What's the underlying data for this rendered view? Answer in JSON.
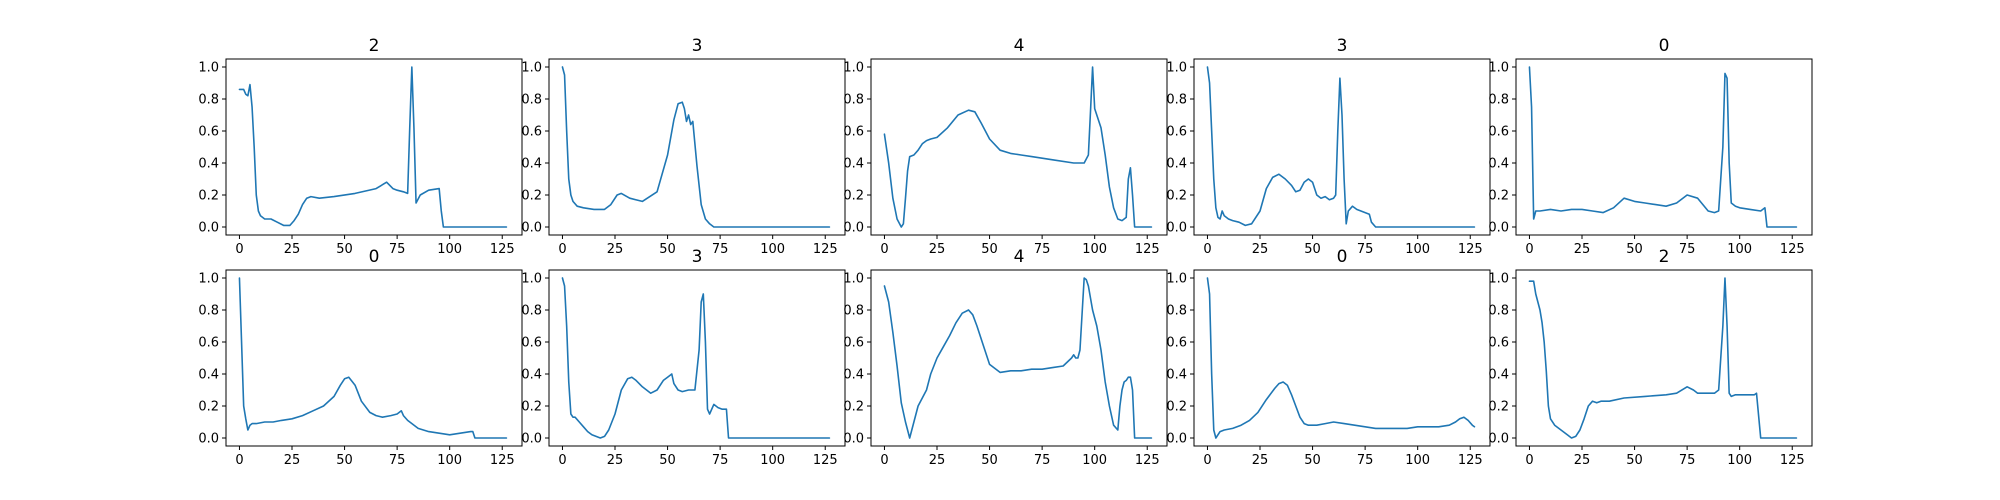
{
  "figure": {
    "line_color": "#1f77b4"
  },
  "chart_data": [
    {
      "type": "line",
      "title": "2",
      "xlim": [
        -6.4,
        134.4
      ],
      "ylim": [
        -0.05,
        1.05
      ],
      "xticks": [
        0,
        25,
        50,
        75,
        100,
        125
      ],
      "yticks": [
        0.0,
        0.2,
        0.4,
        0.6,
        0.8,
        1.0
      ],
      "series": [
        {
          "x": [
            0,
            2,
            3,
            4,
            5,
            6,
            7,
            8,
            9,
            10,
            12,
            15,
            18,
            21,
            24,
            26,
            28,
            30,
            32,
            34,
            38,
            45,
            55,
            65,
            70,
            73,
            75,
            78,
            80,
            81,
            82,
            83,
            84,
            86,
            90,
            95,
            96,
            97,
            100,
            110,
            120,
            127
          ],
          "y": [
            0.86,
            0.86,
            0.83,
            0.82,
            0.89,
            0.75,
            0.5,
            0.2,
            0.1,
            0.07,
            0.05,
            0.05,
            0.03,
            0.01,
            0.01,
            0.04,
            0.08,
            0.14,
            0.18,
            0.19,
            0.18,
            0.19,
            0.21,
            0.24,
            0.28,
            0.24,
            0.23,
            0.22,
            0.21,
            0.62,
            1.0,
            0.62,
            0.15,
            0.2,
            0.23,
            0.24,
            0.1,
            0.0,
            0.0,
            0.0,
            0.0,
            0.0
          ]
        }
      ]
    },
    {
      "type": "line",
      "title": "3",
      "xlim": [
        -6.4,
        134.4
      ],
      "ylim": [
        -0.05,
        1.05
      ],
      "xticks": [
        0,
        25,
        50,
        75,
        100,
        125
      ],
      "yticks": [
        0.0,
        0.2,
        0.4,
        0.6,
        0.8,
        1.0
      ],
      "series": [
        {
          "x": [
            0,
            1,
            2,
            3,
            4,
            5,
            7,
            10,
            15,
            20,
            23,
            26,
            28,
            32,
            38,
            45,
            50,
            53,
            55,
            57,
            58,
            59,
            60,
            61,
            62,
            64,
            66,
            68,
            70,
            72,
            75,
            80,
            90,
            100,
            110,
            120,
            127
          ],
          "y": [
            1.0,
            0.95,
            0.6,
            0.3,
            0.2,
            0.16,
            0.13,
            0.12,
            0.11,
            0.11,
            0.14,
            0.2,
            0.21,
            0.18,
            0.16,
            0.22,
            0.45,
            0.67,
            0.77,
            0.78,
            0.74,
            0.66,
            0.7,
            0.64,
            0.66,
            0.38,
            0.14,
            0.05,
            0.02,
            0.0,
            0.0,
            0.0,
            0.0,
            0.0,
            0.0,
            0.0,
            0.0
          ]
        }
      ]
    },
    {
      "type": "line",
      "title": "4",
      "xlim": [
        -6.4,
        134.4
      ],
      "ylim": [
        -0.05,
        1.05
      ],
      "xticks": [
        0,
        25,
        50,
        75,
        100,
        125
      ],
      "yticks": [
        0.0,
        0.2,
        0.4,
        0.6,
        0.8,
        1.0
      ],
      "series": [
        {
          "x": [
            0,
            2,
            4,
            6,
            8,
            9,
            10,
            11,
            12,
            14,
            16,
            18,
            20,
            22,
            25,
            30,
            35,
            40,
            43,
            46,
            50,
            55,
            60,
            65,
            70,
            80,
            90,
            95,
            97,
            98,
            99,
            100,
            103,
            105,
            107,
            109,
            111,
            113,
            115,
            116,
            117,
            118,
            119,
            120,
            121,
            124,
            127
          ],
          "y": [
            0.58,
            0.4,
            0.18,
            0.05,
            0.0,
            0.02,
            0.18,
            0.35,
            0.44,
            0.45,
            0.48,
            0.52,
            0.54,
            0.55,
            0.56,
            0.62,
            0.7,
            0.73,
            0.72,
            0.65,
            0.55,
            0.48,
            0.46,
            0.45,
            0.44,
            0.42,
            0.4,
            0.4,
            0.45,
            0.72,
            1.0,
            0.74,
            0.62,
            0.45,
            0.25,
            0.12,
            0.05,
            0.04,
            0.06,
            0.3,
            0.37,
            0.2,
            0.0,
            0.0,
            0.0,
            0.0,
            0.0
          ]
        }
      ]
    },
    {
      "type": "line",
      "title": "3",
      "xlim": [
        -6.4,
        134.4
      ],
      "ylim": [
        -0.05,
        1.05
      ],
      "xticks": [
        0,
        25,
        50,
        75,
        100,
        125
      ],
      "yticks": [
        0.0,
        0.2,
        0.4,
        0.6,
        0.8,
        1.0
      ],
      "series": [
        {
          "x": [
            0,
            1,
            2,
            3,
            4,
            5,
            6,
            7,
            8,
            10,
            12,
            15,
            18,
            21,
            25,
            28,
            31,
            34,
            37,
            40,
            42,
            44,
            46,
            48,
            50,
            52,
            54,
            56,
            58,
            60,
            61,
            62,
            63,
            64,
            65,
            66,
            67,
            69,
            71,
            73,
            75,
            77,
            78,
            80,
            90,
            100,
            110,
            120,
            127
          ],
          "y": [
            1.0,
            0.9,
            0.6,
            0.3,
            0.12,
            0.06,
            0.05,
            0.1,
            0.07,
            0.05,
            0.04,
            0.03,
            0.01,
            0.02,
            0.1,
            0.24,
            0.31,
            0.33,
            0.3,
            0.26,
            0.22,
            0.23,
            0.28,
            0.3,
            0.28,
            0.2,
            0.18,
            0.19,
            0.17,
            0.18,
            0.2,
            0.6,
            0.93,
            0.7,
            0.3,
            0.02,
            0.1,
            0.13,
            0.11,
            0.1,
            0.09,
            0.08,
            0.03,
            0.0,
            0.0,
            0.0,
            0.0,
            0.0,
            0.0
          ]
        }
      ]
    },
    {
      "type": "line",
      "title": "0",
      "xlim": [
        -6.4,
        134.4
      ],
      "ylim": [
        -0.05,
        1.05
      ],
      "xticks": [
        0,
        25,
        50,
        75,
        100,
        125
      ],
      "yticks": [
        0.0,
        0.2,
        0.4,
        0.6,
        0.8,
        1.0
      ],
      "series": [
        {
          "x": [
            0,
            1,
            2,
            3,
            5,
            10,
            15,
            20,
            25,
            30,
            35,
            40,
            45,
            50,
            55,
            60,
            65,
            70,
            75,
            80,
            85,
            88,
            90,
            92,
            93,
            94,
            95,
            96,
            98,
            100,
            105,
            110,
            112,
            113,
            115,
            120,
            127
          ],
          "y": [
            1.0,
            0.75,
            0.05,
            0.1,
            0.1,
            0.11,
            0.1,
            0.11,
            0.11,
            0.1,
            0.09,
            0.12,
            0.18,
            0.16,
            0.15,
            0.14,
            0.13,
            0.15,
            0.2,
            0.18,
            0.1,
            0.09,
            0.1,
            0.5,
            0.96,
            0.93,
            0.4,
            0.15,
            0.13,
            0.12,
            0.11,
            0.1,
            0.12,
            0.0,
            0.0,
            0.0,
            0.0
          ]
        }
      ]
    },
    {
      "type": "line",
      "title": "0",
      "xlim": [
        -6.4,
        134.4
      ],
      "ylim": [
        -0.05,
        1.05
      ],
      "xticks": [
        0,
        25,
        50,
        75,
        100,
        125
      ],
      "yticks": [
        0.0,
        0.2,
        0.4,
        0.6,
        0.8,
        1.0
      ],
      "series": [
        {
          "x": [
            0,
            1,
            2,
            3,
            4,
            5,
            6,
            8,
            12,
            16,
            20,
            25,
            30,
            35,
            40,
            45,
            48,
            50,
            52,
            55,
            58,
            62,
            65,
            68,
            72,
            75,
            77,
            78,
            80,
            85,
            90,
            95,
            100,
            105,
            110,
            111,
            112,
            120,
            127
          ],
          "y": [
            1.0,
            0.6,
            0.2,
            0.12,
            0.05,
            0.08,
            0.09,
            0.09,
            0.1,
            0.1,
            0.11,
            0.12,
            0.14,
            0.17,
            0.2,
            0.26,
            0.33,
            0.37,
            0.38,
            0.33,
            0.23,
            0.16,
            0.14,
            0.13,
            0.14,
            0.15,
            0.17,
            0.14,
            0.11,
            0.06,
            0.04,
            0.03,
            0.02,
            0.03,
            0.04,
            0.04,
            0.0,
            0.0,
            0.0
          ]
        }
      ]
    },
    {
      "type": "line",
      "title": "3",
      "xlim": [
        -6.4,
        134.4
      ],
      "ylim": [
        -0.05,
        1.05
      ],
      "xticks": [
        0,
        25,
        50,
        75,
        100,
        125
      ],
      "yticks": [
        0.0,
        0.2,
        0.4,
        0.6,
        0.8,
        1.0
      ],
      "series": [
        {
          "x": [
            0,
            1,
            2,
            3,
            4,
            5,
            6,
            8,
            10,
            12,
            14,
            16,
            18,
            20,
            22,
            25,
            28,
            31,
            33,
            35,
            38,
            42,
            45,
            48,
            50,
            52,
            53,
            55,
            57,
            60,
            63,
            65,
            66,
            67,
            68,
            69,
            70,
            72,
            74,
            76,
            78,
            79,
            80,
            90,
            100,
            110,
            120,
            127
          ],
          "y": [
            1.0,
            0.95,
            0.7,
            0.35,
            0.15,
            0.13,
            0.13,
            0.1,
            0.07,
            0.04,
            0.02,
            0.01,
            0.0,
            0.01,
            0.05,
            0.15,
            0.3,
            0.37,
            0.38,
            0.36,
            0.32,
            0.28,
            0.3,
            0.36,
            0.38,
            0.4,
            0.34,
            0.3,
            0.29,
            0.3,
            0.3,
            0.55,
            0.85,
            0.9,
            0.6,
            0.18,
            0.15,
            0.21,
            0.19,
            0.18,
            0.18,
            0.0,
            0.0,
            0.0,
            0.0,
            0.0,
            0.0,
            0.0
          ]
        }
      ]
    },
    {
      "type": "line",
      "title": "4",
      "xlim": [
        -6.4,
        134.4
      ],
      "ylim": [
        -0.05,
        1.05
      ],
      "xticks": [
        0,
        25,
        50,
        75,
        100,
        125
      ],
      "yticks": [
        0.0,
        0.2,
        0.4,
        0.6,
        0.8,
        1.0
      ],
      "series": [
        {
          "x": [
            0,
            2,
            4,
            6,
            8,
            10,
            12,
            14,
            16,
            18,
            20,
            22,
            25,
            28,
            31,
            34,
            37,
            40,
            42,
            44,
            47,
            50,
            55,
            60,
            65,
            70,
            75,
            80,
            85,
            89,
            90,
            91,
            92,
            93,
            95,
            96,
            97,
            99,
            101,
            103,
            105,
            107,
            109,
            111,
            112,
            113,
            114,
            115,
            116,
            117,
            118,
            119,
            120,
            122,
            127
          ],
          "y": [
            0.95,
            0.85,
            0.66,
            0.45,
            0.22,
            0.1,
            0.0,
            0.1,
            0.2,
            0.25,
            0.3,
            0.4,
            0.5,
            0.57,
            0.64,
            0.72,
            0.78,
            0.8,
            0.77,
            0.7,
            0.58,
            0.46,
            0.41,
            0.42,
            0.42,
            0.43,
            0.43,
            0.44,
            0.45,
            0.5,
            0.52,
            0.5,
            0.5,
            0.55,
            1.0,
            0.99,
            0.95,
            0.8,
            0.7,
            0.55,
            0.35,
            0.2,
            0.08,
            0.05,
            0.2,
            0.3,
            0.35,
            0.36,
            0.38,
            0.38,
            0.3,
            0.0,
            0.0,
            0.0,
            0.0
          ]
        }
      ]
    },
    {
      "type": "line",
      "title": "0",
      "xlim": [
        -6.4,
        134.4
      ],
      "ylim": [
        -0.05,
        1.05
      ],
      "xticks": [
        0,
        25,
        50,
        75,
        100,
        125
      ],
      "yticks": [
        0.0,
        0.2,
        0.4,
        0.6,
        0.8,
        1.0
      ],
      "series": [
        {
          "x": [
            0,
            1,
            2,
            3,
            4,
            6,
            8,
            12,
            16,
            20,
            24,
            28,
            32,
            34,
            36,
            38,
            40,
            42,
            44,
            46,
            48,
            52,
            56,
            60,
            65,
            70,
            75,
            80,
            85,
            90,
            95,
            100,
            105,
            110,
            115,
            118,
            120,
            122,
            124,
            126,
            127
          ],
          "y": [
            1.0,
            0.9,
            0.4,
            0.05,
            0.0,
            0.04,
            0.05,
            0.06,
            0.08,
            0.11,
            0.16,
            0.24,
            0.31,
            0.34,
            0.35,
            0.33,
            0.27,
            0.2,
            0.13,
            0.09,
            0.08,
            0.08,
            0.09,
            0.1,
            0.09,
            0.08,
            0.07,
            0.06,
            0.06,
            0.06,
            0.06,
            0.07,
            0.07,
            0.07,
            0.08,
            0.1,
            0.12,
            0.13,
            0.11,
            0.08,
            0.07
          ]
        }
      ]
    },
    {
      "type": "line",
      "title": "2",
      "xlim": [
        -6.4,
        134.4
      ],
      "ylim": [
        -0.05,
        1.05
      ],
      "xticks": [
        0,
        25,
        50,
        75,
        100,
        125
      ],
      "yticks": [
        0.0,
        0.2,
        0.4,
        0.6,
        0.8,
        1.0
      ],
      "series": [
        {
          "x": [
            0,
            2,
            3,
            4,
            5,
            6,
            7,
            8,
            9,
            10,
            12,
            15,
            18,
            20,
            22,
            24,
            26,
            28,
            30,
            32,
            34,
            38,
            45,
            55,
            65,
            70,
            75,
            78,
            80,
            85,
            88,
            90,
            92,
            93,
            94,
            95,
            96,
            98,
            100,
            104,
            107,
            108,
            110,
            120,
            127
          ],
          "y": [
            0.98,
            0.98,
            0.9,
            0.85,
            0.8,
            0.72,
            0.6,
            0.42,
            0.2,
            0.12,
            0.08,
            0.05,
            0.02,
            0.0,
            0.01,
            0.05,
            0.12,
            0.2,
            0.23,
            0.22,
            0.23,
            0.23,
            0.25,
            0.26,
            0.27,
            0.28,
            0.32,
            0.3,
            0.28,
            0.28,
            0.28,
            0.3,
            0.7,
            1.0,
            0.7,
            0.28,
            0.26,
            0.27,
            0.27,
            0.27,
            0.27,
            0.28,
            0.0,
            0.0,
            0.0
          ]
        }
      ]
    }
  ]
}
